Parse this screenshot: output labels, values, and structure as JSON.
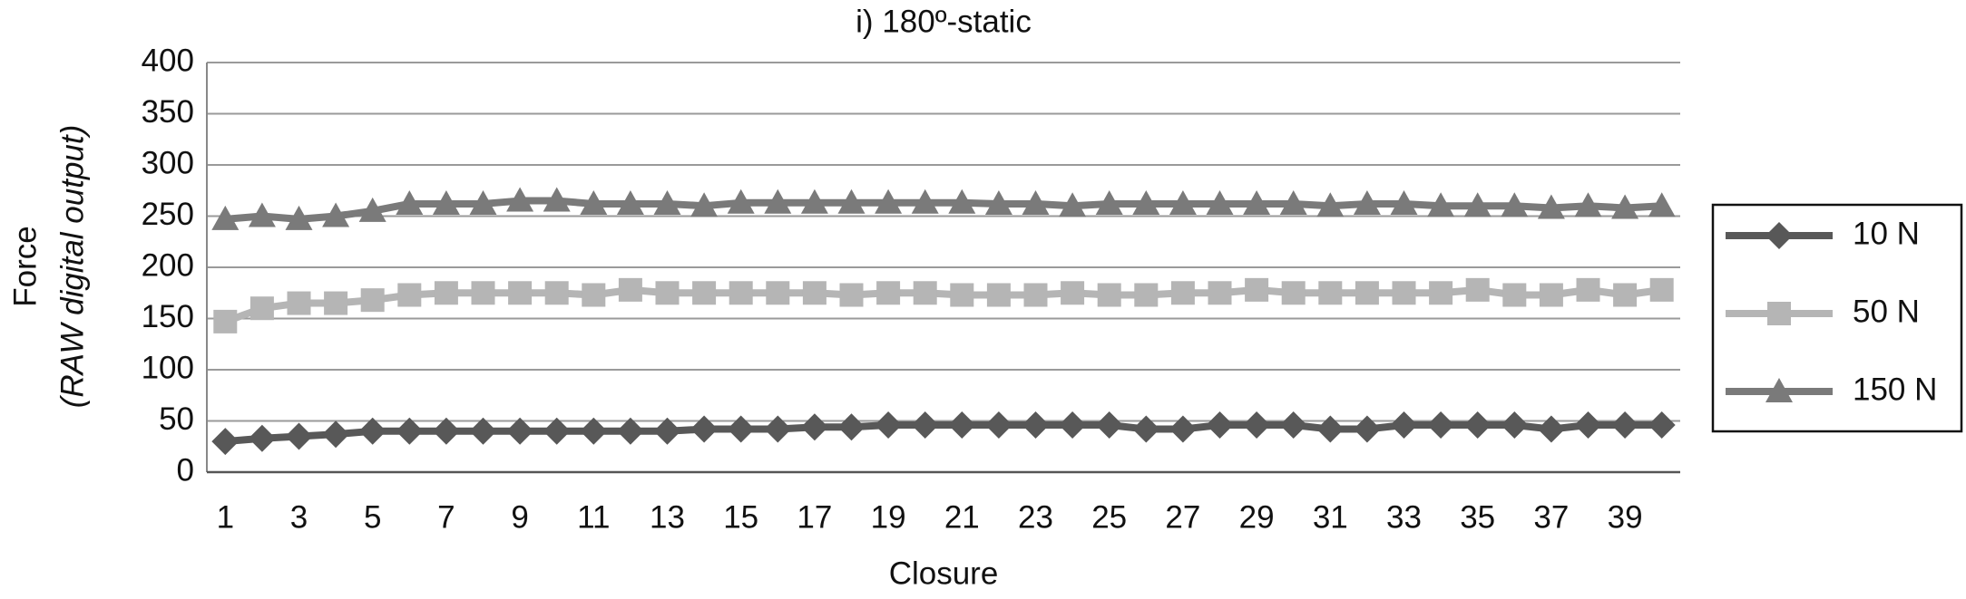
{
  "chart_data": {
    "type": "line",
    "title": "i) 180º-static",
    "x_label": "Closure",
    "y_label": [
      "Force",
      "(RAW digital output)"
    ],
    "categories": [
      "1",
      null,
      "3",
      null,
      "5",
      null,
      "7",
      null,
      "9",
      null,
      "11",
      null,
      "13",
      null,
      "15",
      null,
      "17",
      null,
      "19",
      null,
      "21",
      null,
      "23",
      null,
      "25",
      null,
      "27",
      null,
      "29",
      null,
      "31",
      null,
      "33",
      null,
      "35",
      null,
      "37",
      null,
      "39",
      null
    ],
    "series": [
      {
        "name": "10 N",
        "color": "#585858",
        "marker": "diamond",
        "values": [
          30,
          33,
          35,
          37,
          40,
          40,
          40,
          40,
          40,
          40,
          40,
          40,
          40,
          42,
          42,
          42,
          44,
          44,
          46,
          46,
          46,
          46,
          46,
          46,
          46,
          42,
          42,
          46,
          46,
          46,
          42,
          42,
          46,
          46,
          46,
          46,
          42,
          46,
          46,
          46
        ]
      },
      {
        "name": "50 N",
        "color": "#b5b5b5",
        "marker": "square",
        "values": [
          147,
          160,
          165,
          165,
          168,
          173,
          175,
          175,
          175,
          175,
          173,
          178,
          175,
          175,
          175,
          175,
          175,
          173,
          175,
          175,
          173,
          173,
          173,
          175,
          173,
          173,
          175,
          175,
          178,
          175,
          175,
          175,
          175,
          175,
          178,
          173,
          173,
          178,
          173,
          178
        ]
      },
      {
        "name": "150 N",
        "color": "#7a7a7a",
        "marker": "triangle",
        "values": [
          247,
          250,
          247,
          250,
          255,
          262,
          262,
          262,
          265,
          265,
          262,
          262,
          262,
          260,
          263,
          263,
          263,
          263,
          263,
          263,
          263,
          262,
          262,
          260,
          262,
          262,
          262,
          262,
          262,
          262,
          260,
          262,
          262,
          260,
          260,
          260,
          258,
          260,
          258,
          260
        ]
      }
    ],
    "ylim": [
      0,
      400
    ],
    "yticks": [
      0,
      50,
      100,
      150,
      200,
      250,
      300,
      350,
      400
    ],
    "grid": true,
    "legend": "right"
  }
}
